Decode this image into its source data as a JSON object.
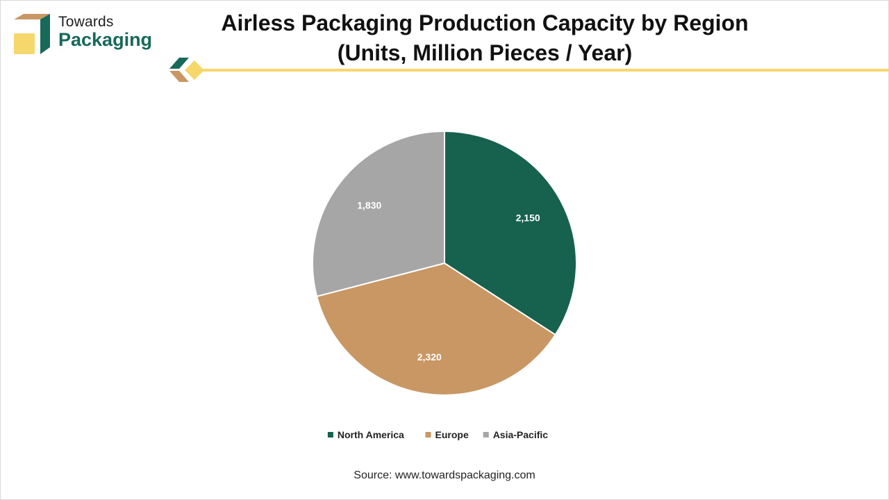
{
  "logo": {
    "line1": "Towards",
    "line2": "Packaging"
  },
  "title": {
    "line1": "Airless Packaging Production Capacity by Region",
    "line2": "(Units, Million Pieces / Year)"
  },
  "colors": {
    "north_america": "#17614f",
    "europe": "#c89763",
    "asia_pacific": "#a6a6a6",
    "accent_yellow": "#f5d76b",
    "brand_green": "#17695a",
    "brand_tan": "#c89763"
  },
  "chart_data": {
    "type": "pie",
    "title": "Airless Packaging Production Capacity by Region (Units, Million Pieces / Year)",
    "categories": [
      "North America",
      "Europe",
      "Asia-Pacific"
    ],
    "values": [
      2150,
      2320,
      1830
    ],
    "value_labels": [
      "2,150",
      "2,320",
      "1,830"
    ],
    "colors": [
      "#17614f",
      "#c89763",
      "#a6a6a6"
    ],
    "legend_position": "bottom"
  },
  "source": "Source: www.towardspackaging.com"
}
